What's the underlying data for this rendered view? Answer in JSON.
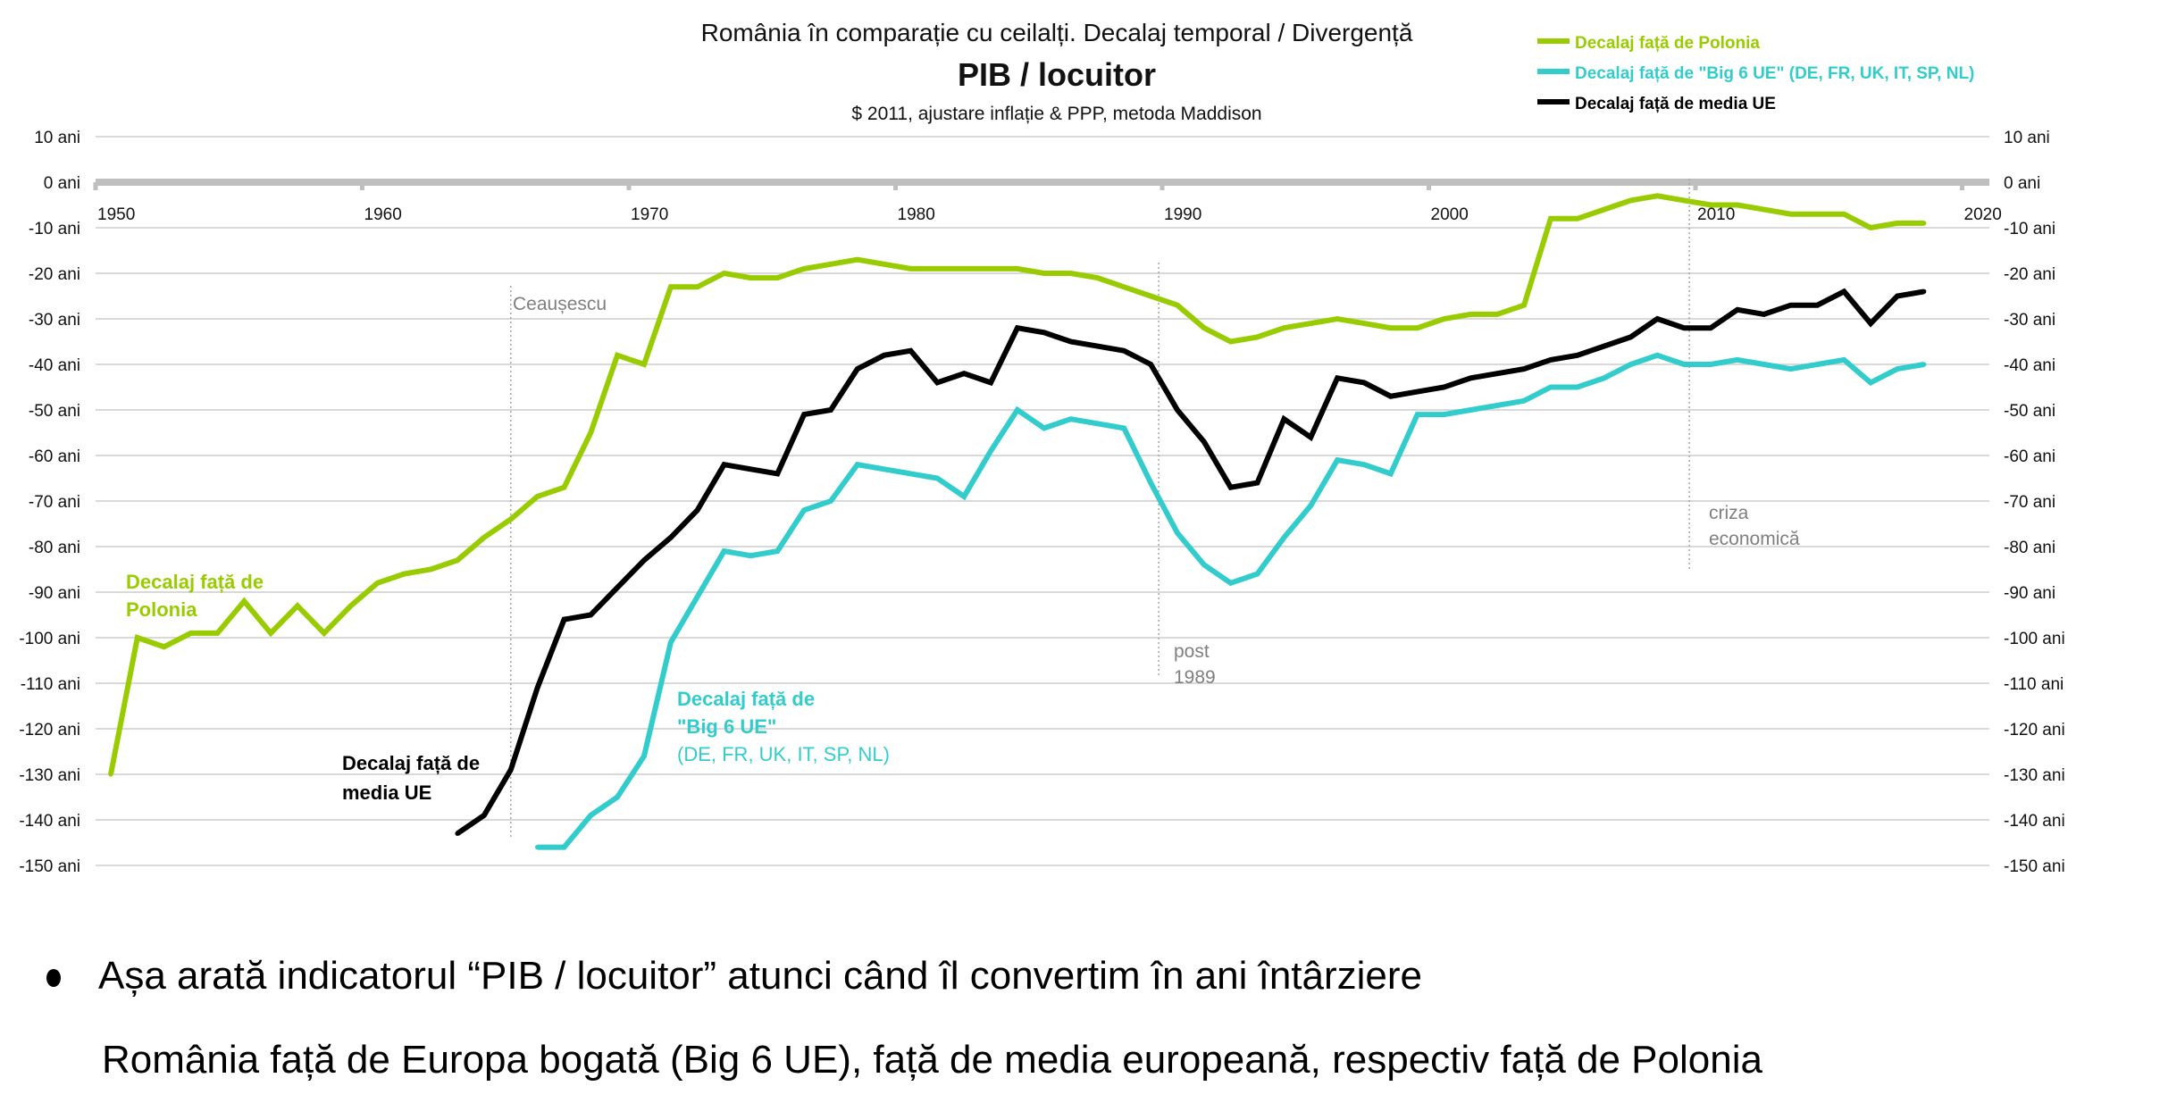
{
  "chart_data": {
    "type": "line",
    "title": "România în comparație cu ceilalți. Decalaj temporal / Divergență",
    "main_title": "PIB / locuitor",
    "subtitle": "$ 2011, ajustare inflație & PPP, metoda Maddison",
    "xlabel": "",
    "ylabel": "",
    "xlim": [
      1950,
      2020
    ],
    "ylim": [
      -150,
      10
    ],
    "x_ticks": [
      "1950",
      "1960",
      "1970",
      "1980",
      "1990",
      "2000",
      "2010",
      "2020"
    ],
    "y_ticks": [
      "10 ani",
      "0 ani",
      "-10 ani",
      "-20 ani",
      "-30 ani",
      "-40 ani",
      "-50 ani",
      "-60 ani",
      "-70 ani",
      "-80 ani",
      "-90 ani",
      "-100 ani",
      "-110 ani",
      "-120 ani",
      "-130 ani",
      "-140 ani",
      "-150 ani"
    ],
    "y_tick_values": [
      10,
      0,
      -10,
      -20,
      -30,
      -40,
      -50,
      -60,
      -70,
      -80,
      -90,
      -100,
      -110,
      -120,
      -130,
      -140,
      -150
    ],
    "grid": true,
    "legend_position": "top-right",
    "series": [
      {
        "name": "Decalaj față de Polonia",
        "color": "#99cc00",
        "start_year": 1950,
        "values": [
          -130,
          -100,
          -102,
          -99,
          -99,
          -92,
          -99,
          -93,
          -99,
          -93,
          -88,
          -86,
          -85,
          -83,
          -78,
          -74,
          -69,
          -67,
          -55,
          -38,
          -40,
          -23,
          -23,
          -20,
          -21,
          -21,
          -19,
          -18,
          -17,
          -18,
          -19,
          -19,
          -19,
          -19,
          -19,
          -20,
          -20,
          -21,
          -23,
          -25,
          -27,
          -32,
          -35,
          -34,
          -32,
          -31,
          -30,
          -31,
          -32,
          -32,
          -30,
          -29,
          -29,
          -27,
          -8,
          -8,
          -6,
          -4,
          -3,
          -4,
          -5,
          -5,
          -6,
          -7,
          -7,
          -7,
          -10,
          -9,
          -9
        ]
      },
      {
        "name": "Decalaj față de \"Big 6 UE\" (DE, FR, UK, IT, SP, NL)",
        "color": "#33cccc",
        "start_year": 1966,
        "values": [
          -146,
          -146,
          -139,
          -135,
          -126,
          -101,
          -91,
          -81,
          -82,
          -81,
          -72,
          -70,
          -62,
          -63,
          -64,
          -65,
          -69,
          -59,
          -50,
          -54,
          -52,
          -53,
          -54,
          -66,
          -77,
          -84,
          -88,
          -86,
          -78,
          -71,
          -61,
          -62,
          -64,
          -51,
          -51,
          -50,
          -49,
          -48,
          -45,
          -45,
          -43,
          -40,
          -38,
          -40,
          -40,
          -39,
          -40,
          -41,
          -40,
          -39,
          -44,
          -41,
          -40
        ]
      },
      {
        "name": "Decalaj față de media UE",
        "color": "#000000",
        "start_year": 1963,
        "values": [
          -143,
          -139,
          -129,
          -111,
          -96,
          -95,
          -89,
          -83,
          -78,
          -72,
          -62,
          -63,
          -64,
          -51,
          -50,
          -41,
          -38,
          -37,
          -44,
          -42,
          -44,
          -32,
          -33,
          -35,
          -36,
          -37,
          -40,
          -50,
          -57,
          -67,
          -66,
          -52,
          -56,
          -43,
          -44,
          -47,
          -46,
          -45,
          -43,
          -42,
          -41,
          -39,
          -38,
          -36,
          -34,
          -30,
          -32,
          -32,
          -28,
          -29,
          -27,
          -27,
          -24,
          -31,
          -25,
          -24
        ]
      }
    ],
    "series_labels": [
      {
        "series": 0,
        "lines": [
          "Decalaj față de",
          "Polonia"
        ],
        "bold": [
          true,
          true
        ]
      },
      {
        "series": 2,
        "lines": [
          "Decalaj față de",
          "media UE"
        ],
        "bold": [
          true,
          true
        ]
      },
      {
        "series": 1,
        "lines": [
          "Decalaj față de",
          "\"Big 6 UE\"",
          "(DE, FR, UK, IT, SP, NL)"
        ],
        "bold": [
          true,
          true,
          false
        ]
      }
    ],
    "annotations": [
      {
        "year": 1965,
        "lines": [
          "Ceaușescu"
        ]
      },
      {
        "year": 1989.3,
        "lines": [
          "post",
          "1989"
        ]
      },
      {
        "year": 2009.2,
        "lines": [
          "criza",
          "economică"
        ]
      }
    ]
  },
  "notes": {
    "bullet": "Așa arată indicatorul “PIB / locuitor” atunci când îl convertim în ani întârziere",
    "second": "România față de Europa bogată (Big 6 UE), față de media europeană, respectiv față de Polonia"
  }
}
